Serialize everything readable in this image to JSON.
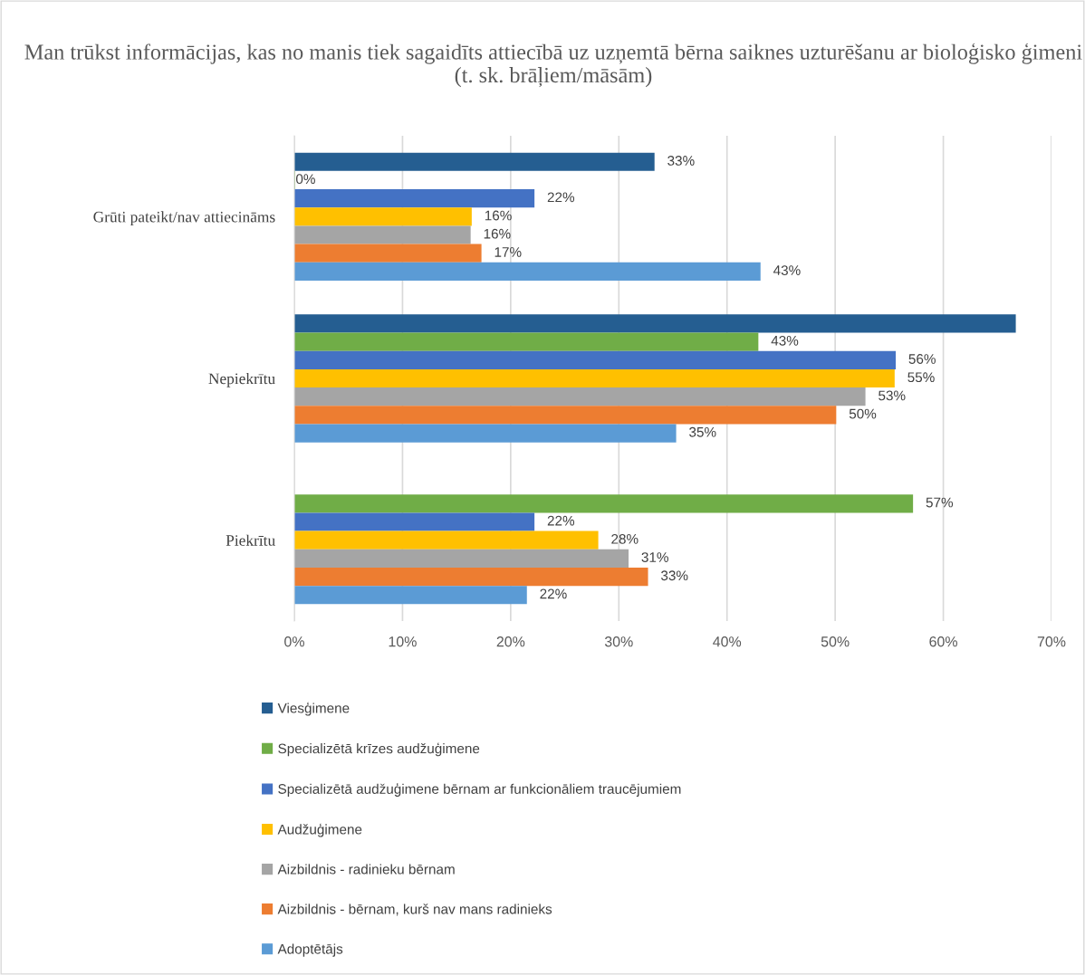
{
  "chart_data": {
    "type": "bar",
    "orientation": "horizontal",
    "title": "Man trūkst informācijas, kas no manis tiek sagaidīts attiecībā uz uzņemtā bērna saiknes uzturēšanu ar bioloģisko ģimeni (t. sk. brāļiem/māsām)",
    "categories": [
      "Grūti pateikt/nav attiecināms",
      "Nepiekrītu",
      "Piekrītu"
    ],
    "series": [
      {
        "name": "Viesģimene",
        "color": "#255e91",
        "values": [
          33.3,
          66.7,
          null
        ],
        "value_labels": [
          "33%",
          null,
          null
        ]
      },
      {
        "name": "Specializētā krīzes audžuģimene",
        "color": "#70ad47",
        "values": [
          0,
          42.9,
          57.2
        ],
        "value_labels": [
          "0%",
          "43%",
          "57%"
        ]
      },
      {
        "name": "Specializētā audžuģimene bērnam ar funkcionāliem traucējumiem",
        "color": "#4472c4",
        "values": [
          22.2,
          55.6,
          22.2
        ],
        "value_labels": [
          "22%",
          "56%",
          "22%"
        ]
      },
      {
        "name": "Audžuģimene",
        "color": "#ffc000",
        "values": [
          16.4,
          55.5,
          28.1
        ],
        "value_labels": [
          "16%",
          "55%",
          "28%"
        ]
      },
      {
        "name": "Aizbildnis - radinieku bērnam",
        "color": "#a5a5a5",
        "values": [
          16.3,
          52.8,
          30.9
        ],
        "value_labels": [
          "16%",
          "53%",
          "31%"
        ]
      },
      {
        "name": "Aizbildnis - bērnam, kurš nav mans radinieks",
        "color": "#ed7d31",
        "values": [
          17.3,
          50.1,
          32.7
        ],
        "value_labels": [
          "17%",
          "50%",
          "33%"
        ]
      },
      {
        "name": "Adoptētājs",
        "color": "#5b9bd5",
        "values": [
          43.1,
          35.3,
          21.5
        ],
        "value_labels": [
          "43%",
          "35%",
          "22%"
        ]
      }
    ],
    "xlim": [
      0,
      70
    ],
    "xticks": [
      {
        "value": 0,
        "label": "0%"
      },
      {
        "value": 10,
        "label": "10%"
      },
      {
        "value": 20,
        "label": "20%"
      },
      {
        "value": 30,
        "label": "30%"
      },
      {
        "value": 40,
        "label": "40%"
      },
      {
        "value": 50,
        "label": "50%"
      },
      {
        "value": 60,
        "label": "60%"
      },
      {
        "value": 70,
        "label": "70%"
      }
    ],
    "grid": "x",
    "legend": "bottom"
  }
}
